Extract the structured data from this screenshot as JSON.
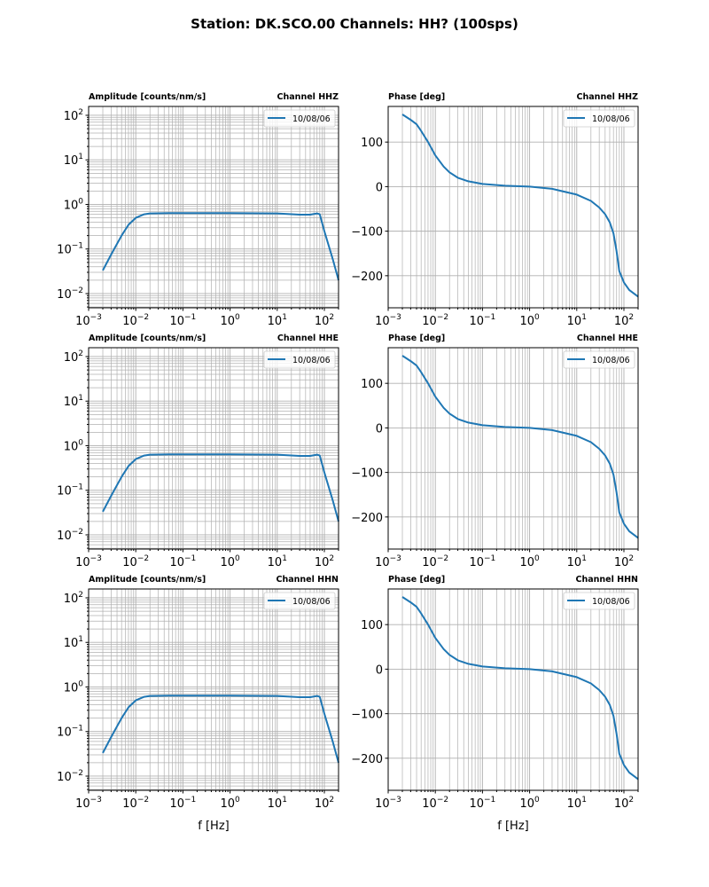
{
  "title": "Station: DK.SCO.00 Channels: HH? (100sps)",
  "xlabel": "f [Hz]",
  "colors": {
    "line": "#1f77b4",
    "grid": "#b0b0b0",
    "axis": "#000000"
  },
  "chart_data": {
    "type": "line",
    "xscale": "log",
    "xlim": [
      0.001,
      200
    ],
    "x_ticks": [
      0.001,
      0.01,
      0.1,
      1,
      10,
      100
    ],
    "x_tick_labels": [
      [
        "10",
        "−3"
      ],
      [
        "10",
        "−2"
      ],
      [
        "10",
        "−1"
      ],
      [
        "10",
        "0"
      ],
      [
        "10",
        "1"
      ],
      [
        "10",
        "2"
      ]
    ],
    "amplitude": {
      "label": "Amplitude [counts/nm/s]",
      "yscale": "log",
      "ylim": [
        0.0048,
        158
      ],
      "y_ticks": [
        0.01,
        0.1,
        1,
        10,
        100
      ],
      "y_tick_labels": [
        [
          "10",
          "−2"
        ],
        [
          "10",
          "−1"
        ],
        [
          "10",
          "0"
        ],
        [
          "10",
          "1"
        ],
        [
          "10",
          "2"
        ]
      ],
      "grid": "major+minor"
    },
    "phase": {
      "label": "Phase [deg]",
      "yscale": "linear",
      "ylim": [
        -272,
        180
      ],
      "y_ticks": [
        -200,
        -100,
        0,
        100
      ],
      "y_tick_labels": [
        "−200",
        "−100",
        "0",
        "100"
      ],
      "grid": "major y, major+minor x"
    },
    "legend": {
      "placement": "upper-right"
    },
    "series": [
      {
        "name": "10/08/06",
        "freq_amp": [
          0.002,
          0.003,
          0.004,
          0.005,
          0.007,
          0.01,
          0.015,
          0.02,
          0.05,
          1,
          10,
          30,
          50,
          70,
          80,
          100,
          150,
          200
        ],
        "amp": [
          0.033,
          0.075,
          0.13,
          0.2,
          0.35,
          0.5,
          0.6,
          0.63,
          0.64,
          0.64,
          0.63,
          0.59,
          0.59,
          0.63,
          0.6,
          0.25,
          0.06,
          0.02
        ],
        "freq_phase": [
          0.002,
          0.003,
          0.004,
          0.005,
          0.007,
          0.01,
          0.015,
          0.02,
          0.03,
          0.05,
          0.1,
          0.3,
          1,
          3,
          10,
          20,
          30,
          40,
          50,
          60,
          70,
          80,
          100,
          130,
          200
        ],
        "phase": [
          162,
          150,
          140,
          125,
          100,
          70,
          45,
          32,
          20,
          12,
          6,
          2,
          0,
          -5,
          -18,
          -32,
          -47,
          -62,
          -80,
          -105,
          -145,
          -190,
          -215,
          -232,
          -247
        ]
      }
    ],
    "channels": [
      {
        "label": "Channel HHZ"
      },
      {
        "label": "Channel HHE"
      },
      {
        "label": "Channel HHN"
      }
    ]
  }
}
